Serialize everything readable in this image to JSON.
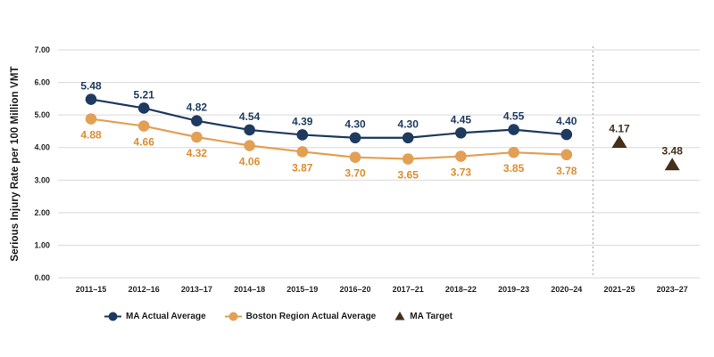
{
  "chart_data": {
    "type": "line",
    "title": "",
    "xlabel": "",
    "ylabel": "Serious Injury Rate per 100 Million VMT",
    "ylim": [
      0,
      7
    ],
    "ytick_step": 1,
    "yticks": [
      "0.00",
      "1.00",
      "2.00",
      "3.00",
      "4.00",
      "5.00",
      "6.00",
      "7.00"
    ],
    "grid": "horizontal",
    "legend_position": "bottom",
    "categories": [
      "2011–15",
      "2012–16",
      "2013–17",
      "2014–18",
      "2015–19",
      "2016–20",
      "2017–21",
      "2018–22",
      "2019–23",
      "2020–24",
      "2021–25",
      "2023–27"
    ],
    "separator_after_index": 9,
    "series": [
      {
        "name": "MA Actual Average",
        "marker": "circle",
        "line": true,
        "color": "#1e3a5f",
        "label_color": "#1e3a5f",
        "label_position": "above",
        "values": [
          5.48,
          5.21,
          4.82,
          4.54,
          4.39,
          4.3,
          4.3,
          4.45,
          4.55,
          4.4,
          null,
          null
        ]
      },
      {
        "name": "Boston Region Actual Average",
        "marker": "circle",
        "line": true,
        "color": "#e2a055",
        "label_color": "#dd8d2e",
        "label_position": "below",
        "values": [
          4.88,
          4.66,
          4.32,
          4.06,
          3.87,
          3.7,
          3.65,
          3.73,
          3.85,
          3.78,
          null,
          null
        ]
      },
      {
        "name": "MA Target",
        "marker": "triangle",
        "line": false,
        "color": "#452f1b",
        "label_color": "#452f1b",
        "label_position": "above",
        "values": [
          null,
          null,
          null,
          null,
          null,
          null,
          null,
          null,
          null,
          null,
          4.17,
          3.48
        ]
      }
    ],
    "colors": {
      "gridline": "#d9d9d9",
      "separator": "#a9a9a9",
      "tick_text": "#262626",
      "background": "#ffffff"
    }
  }
}
